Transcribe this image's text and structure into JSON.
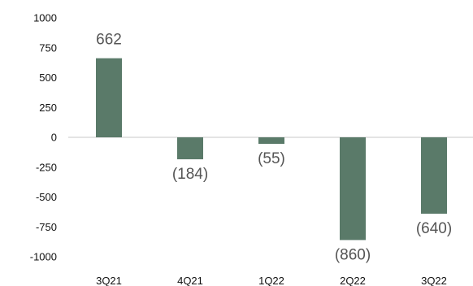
{
  "chart_data": {
    "type": "bar",
    "categories": [
      "3Q21",
      "4Q21",
      "1Q22",
      "2Q22",
      "3Q22"
    ],
    "values": [
      662,
      -184,
      -55,
      -860,
      -640
    ],
    "data_labels": [
      "662",
      "(184)",
      "(55)",
      "(860)",
      "(640)"
    ],
    "y_ticks": [
      1000,
      750,
      500,
      250,
      0,
      -250,
      -500,
      -750,
      -1000
    ],
    "y_tick_labels": [
      "1000",
      "750",
      "500",
      "250",
      "0",
      "-250",
      "-500",
      "-750",
      "-1000"
    ],
    "ylim": [
      -1000,
      1000
    ],
    "grid": false,
    "bar_color": "#5a7a69",
    "axis_color": "#c8c8c8"
  }
}
